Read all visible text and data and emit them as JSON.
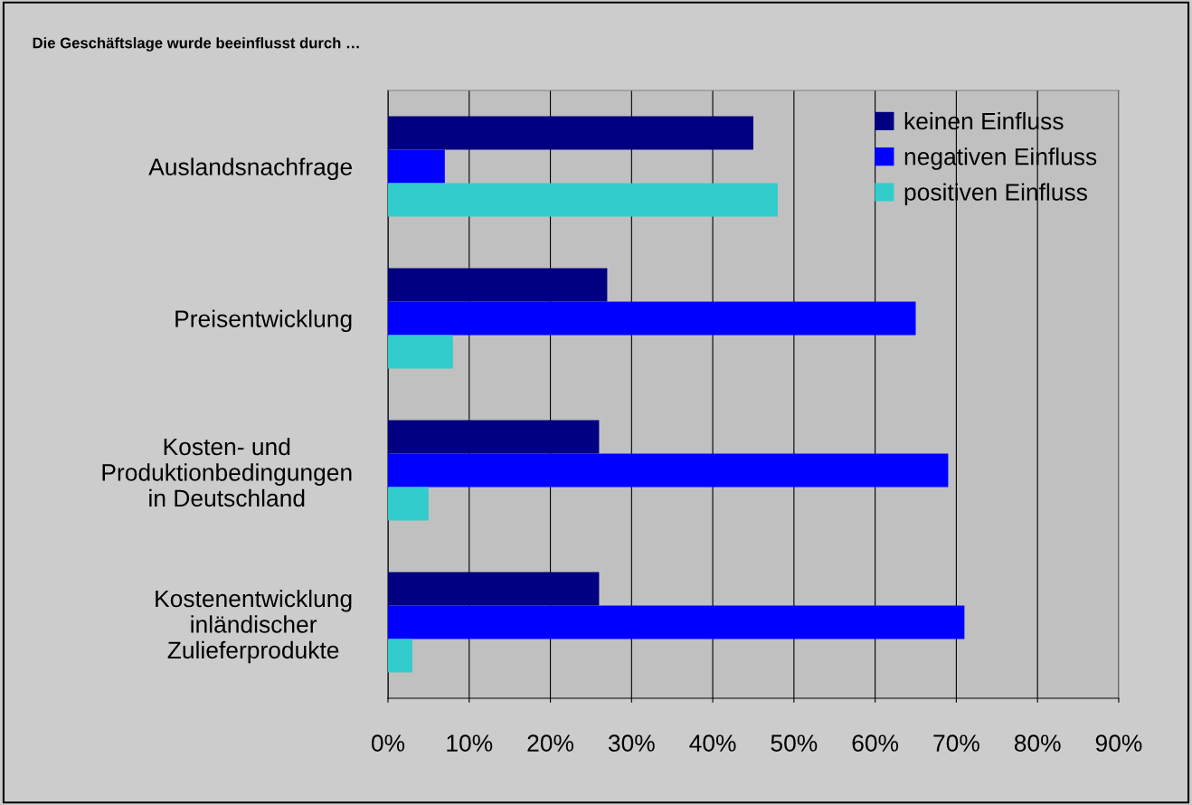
{
  "chart_data": {
    "type": "bar",
    "orientation": "horizontal",
    "title": "Die Geschäftslage wurde beeinflusst durch …",
    "categories": [
      "Auslandsnachfrage",
      "Preisentwicklung",
      "Kosten- und\nProduktionbedingungen\nin Deutschland",
      "Kostenentwicklung\ninländischer\nZulieferprodukte"
    ],
    "series": [
      {
        "name": "keinen Einfluss",
        "color": "#000080",
        "values": [
          45,
          27,
          26,
          26
        ]
      },
      {
        "name": "negativen Einfluss",
        "color": "#0000ff",
        "values": [
          7,
          65,
          69,
          71
        ]
      },
      {
        "name": "positiven Einfluss",
        "color": "#33cccc",
        "values": [
          48,
          8,
          5,
          3
        ]
      }
    ],
    "xlim": [
      0,
      90
    ],
    "xticks": [
      {
        "value": 0,
        "label": "0%"
      },
      {
        "value": 10,
        "label": "10%"
      },
      {
        "value": 20,
        "label": "20%"
      },
      {
        "value": 30,
        "label": "30%"
      },
      {
        "value": 40,
        "label": "40%"
      },
      {
        "value": 50,
        "label": "50%"
      },
      {
        "value": 60,
        "label": "60%"
      },
      {
        "value": 70,
        "label": "70%"
      },
      {
        "value": 80,
        "label": "80%"
      },
      {
        "value": 90,
        "label": "90%"
      }
    ],
    "grid": "x",
    "legend": "top right"
  }
}
